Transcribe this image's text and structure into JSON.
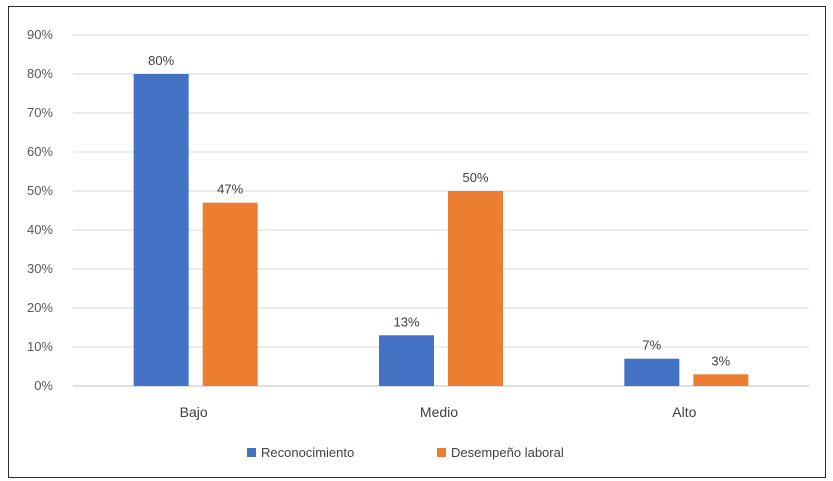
{
  "chart_data": {
    "type": "bar",
    "categories": [
      "Bajo",
      "Medio",
      "Alto"
    ],
    "series": [
      {
        "name": "Reconocimiento",
        "values": [
          80,
          13,
          7
        ],
        "labels": [
          "80%",
          "13%",
          "7%"
        ],
        "color": "#4472C4"
      },
      {
        "name": "Desempeño laboral",
        "values": [
          47,
          50,
          3
        ],
        "labels": [
          "47%",
          "50%",
          "3%"
        ],
        "color": "#ED7D31"
      }
    ],
    "y_ticks": [
      "0%",
      "10%",
      "20%",
      "30%",
      "40%",
      "50%",
      "60%",
      "70%",
      "80%",
      "90%"
    ],
    "ylim": [
      0,
      90
    ],
    "y_unit": "%",
    "grid": true,
    "legend_position": "bottom"
  }
}
